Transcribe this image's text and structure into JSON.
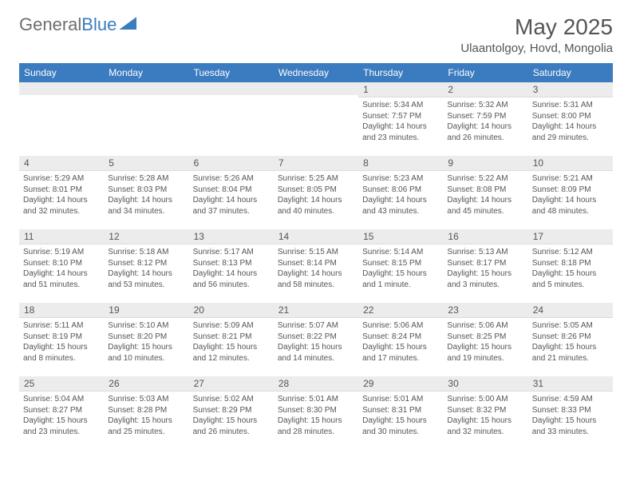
{
  "brand": {
    "part1": "General",
    "part2": "Blue"
  },
  "header": {
    "month_title": "May 2025",
    "location": "Ulaantolgoy, Hovd, Mongolia"
  },
  "calendar": {
    "day_headers": [
      "Sunday",
      "Monday",
      "Tuesday",
      "Wednesday",
      "Thursday",
      "Friday",
      "Saturday"
    ],
    "header_bg": "#3b7bbf",
    "header_fg": "#ffffff",
    "daynum_bg": "#ececec",
    "weeks": [
      [
        {
          "blank": true
        },
        {
          "blank": true
        },
        {
          "blank": true
        },
        {
          "blank": true
        },
        {
          "num": "1",
          "sunrise": "Sunrise: 5:34 AM",
          "sunset": "Sunset: 7:57 PM",
          "daylight": "Daylight: 14 hours and 23 minutes."
        },
        {
          "num": "2",
          "sunrise": "Sunrise: 5:32 AM",
          "sunset": "Sunset: 7:59 PM",
          "daylight": "Daylight: 14 hours and 26 minutes."
        },
        {
          "num": "3",
          "sunrise": "Sunrise: 5:31 AM",
          "sunset": "Sunset: 8:00 PM",
          "daylight": "Daylight: 14 hours and 29 minutes."
        }
      ],
      [
        {
          "num": "4",
          "sunrise": "Sunrise: 5:29 AM",
          "sunset": "Sunset: 8:01 PM",
          "daylight": "Daylight: 14 hours and 32 minutes."
        },
        {
          "num": "5",
          "sunrise": "Sunrise: 5:28 AM",
          "sunset": "Sunset: 8:03 PM",
          "daylight": "Daylight: 14 hours and 34 minutes."
        },
        {
          "num": "6",
          "sunrise": "Sunrise: 5:26 AM",
          "sunset": "Sunset: 8:04 PM",
          "daylight": "Daylight: 14 hours and 37 minutes."
        },
        {
          "num": "7",
          "sunrise": "Sunrise: 5:25 AM",
          "sunset": "Sunset: 8:05 PM",
          "daylight": "Daylight: 14 hours and 40 minutes."
        },
        {
          "num": "8",
          "sunrise": "Sunrise: 5:23 AM",
          "sunset": "Sunset: 8:06 PM",
          "daylight": "Daylight: 14 hours and 43 minutes."
        },
        {
          "num": "9",
          "sunrise": "Sunrise: 5:22 AM",
          "sunset": "Sunset: 8:08 PM",
          "daylight": "Daylight: 14 hours and 45 minutes."
        },
        {
          "num": "10",
          "sunrise": "Sunrise: 5:21 AM",
          "sunset": "Sunset: 8:09 PM",
          "daylight": "Daylight: 14 hours and 48 minutes."
        }
      ],
      [
        {
          "num": "11",
          "sunrise": "Sunrise: 5:19 AM",
          "sunset": "Sunset: 8:10 PM",
          "daylight": "Daylight: 14 hours and 51 minutes."
        },
        {
          "num": "12",
          "sunrise": "Sunrise: 5:18 AM",
          "sunset": "Sunset: 8:12 PM",
          "daylight": "Daylight: 14 hours and 53 minutes."
        },
        {
          "num": "13",
          "sunrise": "Sunrise: 5:17 AM",
          "sunset": "Sunset: 8:13 PM",
          "daylight": "Daylight: 14 hours and 56 minutes."
        },
        {
          "num": "14",
          "sunrise": "Sunrise: 5:15 AM",
          "sunset": "Sunset: 8:14 PM",
          "daylight": "Daylight: 14 hours and 58 minutes."
        },
        {
          "num": "15",
          "sunrise": "Sunrise: 5:14 AM",
          "sunset": "Sunset: 8:15 PM",
          "daylight": "Daylight: 15 hours and 1 minute."
        },
        {
          "num": "16",
          "sunrise": "Sunrise: 5:13 AM",
          "sunset": "Sunset: 8:17 PM",
          "daylight": "Daylight: 15 hours and 3 minutes."
        },
        {
          "num": "17",
          "sunrise": "Sunrise: 5:12 AM",
          "sunset": "Sunset: 8:18 PM",
          "daylight": "Daylight: 15 hours and 5 minutes."
        }
      ],
      [
        {
          "num": "18",
          "sunrise": "Sunrise: 5:11 AM",
          "sunset": "Sunset: 8:19 PM",
          "daylight": "Daylight: 15 hours and 8 minutes."
        },
        {
          "num": "19",
          "sunrise": "Sunrise: 5:10 AM",
          "sunset": "Sunset: 8:20 PM",
          "daylight": "Daylight: 15 hours and 10 minutes."
        },
        {
          "num": "20",
          "sunrise": "Sunrise: 5:09 AM",
          "sunset": "Sunset: 8:21 PM",
          "daylight": "Daylight: 15 hours and 12 minutes."
        },
        {
          "num": "21",
          "sunrise": "Sunrise: 5:07 AM",
          "sunset": "Sunset: 8:22 PM",
          "daylight": "Daylight: 15 hours and 14 minutes."
        },
        {
          "num": "22",
          "sunrise": "Sunrise: 5:06 AM",
          "sunset": "Sunset: 8:24 PM",
          "daylight": "Daylight: 15 hours and 17 minutes."
        },
        {
          "num": "23",
          "sunrise": "Sunrise: 5:06 AM",
          "sunset": "Sunset: 8:25 PM",
          "daylight": "Daylight: 15 hours and 19 minutes."
        },
        {
          "num": "24",
          "sunrise": "Sunrise: 5:05 AM",
          "sunset": "Sunset: 8:26 PM",
          "daylight": "Daylight: 15 hours and 21 minutes."
        }
      ],
      [
        {
          "num": "25",
          "sunrise": "Sunrise: 5:04 AM",
          "sunset": "Sunset: 8:27 PM",
          "daylight": "Daylight: 15 hours and 23 minutes."
        },
        {
          "num": "26",
          "sunrise": "Sunrise: 5:03 AM",
          "sunset": "Sunset: 8:28 PM",
          "daylight": "Daylight: 15 hours and 25 minutes."
        },
        {
          "num": "27",
          "sunrise": "Sunrise: 5:02 AM",
          "sunset": "Sunset: 8:29 PM",
          "daylight": "Daylight: 15 hours and 26 minutes."
        },
        {
          "num": "28",
          "sunrise": "Sunrise: 5:01 AM",
          "sunset": "Sunset: 8:30 PM",
          "daylight": "Daylight: 15 hours and 28 minutes."
        },
        {
          "num": "29",
          "sunrise": "Sunrise: 5:01 AM",
          "sunset": "Sunset: 8:31 PM",
          "daylight": "Daylight: 15 hours and 30 minutes."
        },
        {
          "num": "30",
          "sunrise": "Sunrise: 5:00 AM",
          "sunset": "Sunset: 8:32 PM",
          "daylight": "Daylight: 15 hours and 32 minutes."
        },
        {
          "num": "31",
          "sunrise": "Sunrise: 4:59 AM",
          "sunset": "Sunset: 8:33 PM",
          "daylight": "Daylight: 15 hours and 33 minutes."
        }
      ]
    ]
  }
}
